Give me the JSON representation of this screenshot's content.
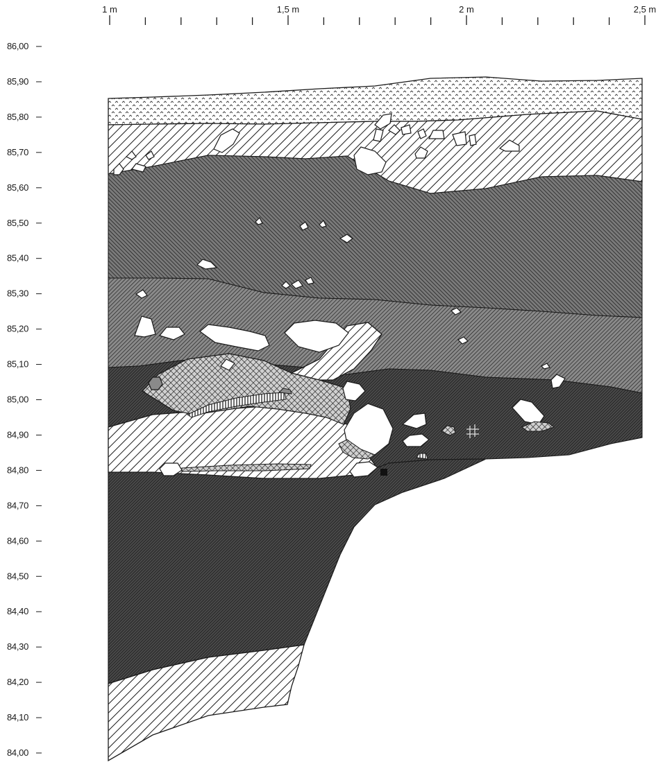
{
  "figure": {
    "type": "stratigraphic-section",
    "horizontal_axis": {
      "unit": "m",
      "range": [
        1.0,
        2.5
      ],
      "minor_tick_step": 0.1,
      "labels": [
        {
          "value": 1.0,
          "text": "1 m"
        },
        {
          "value": 1.5,
          "text": "1,5 m"
        },
        {
          "value": 2.0,
          "text": "2 m"
        },
        {
          "value": 2.5,
          "text": "2,5 m"
        }
      ]
    },
    "vertical_axis": {
      "unit": "m a.s.l.",
      "range": [
        84.0,
        86.0
      ],
      "labels": [
        {
          "value": 86.0,
          "text": "86,00"
        },
        {
          "value": 85.9,
          "text": "85,90"
        },
        {
          "value": 85.8,
          "text": "85,80"
        },
        {
          "value": 85.7,
          "text": "85,70"
        },
        {
          "value": 85.6,
          "text": "85,60"
        },
        {
          "value": 85.5,
          "text": "85,50"
        },
        {
          "value": 85.4,
          "text": "85,40"
        },
        {
          "value": 85.3,
          "text": "85,30"
        },
        {
          "value": 85.2,
          "text": "85,20"
        },
        {
          "value": 85.1,
          "text": "85,10"
        },
        {
          "value": 85.0,
          "text": "85,00"
        },
        {
          "value": 84.9,
          "text": "84,90"
        },
        {
          "value": 84.8,
          "text": "84,80"
        },
        {
          "value": 84.7,
          "text": "84,70"
        },
        {
          "value": 84.6,
          "text": "84,60"
        },
        {
          "value": 84.5,
          "text": "84,50"
        },
        {
          "value": 84.4,
          "text": "84,40"
        },
        {
          "value": 84.3,
          "text": "84,30"
        },
        {
          "value": 84.2,
          "text": "84,20"
        },
        {
          "value": 84.1,
          "text": "84,10"
        },
        {
          "value": 84.0,
          "text": "84,00"
        }
      ]
    },
    "colors": {
      "ink": "#1a1a1a",
      "dark_fill": "#3a3a3a",
      "mid_fill": "#6a6a6a",
      "light_fill": "#9a9a9a",
      "stone": "#ffffff"
    }
  }
}
